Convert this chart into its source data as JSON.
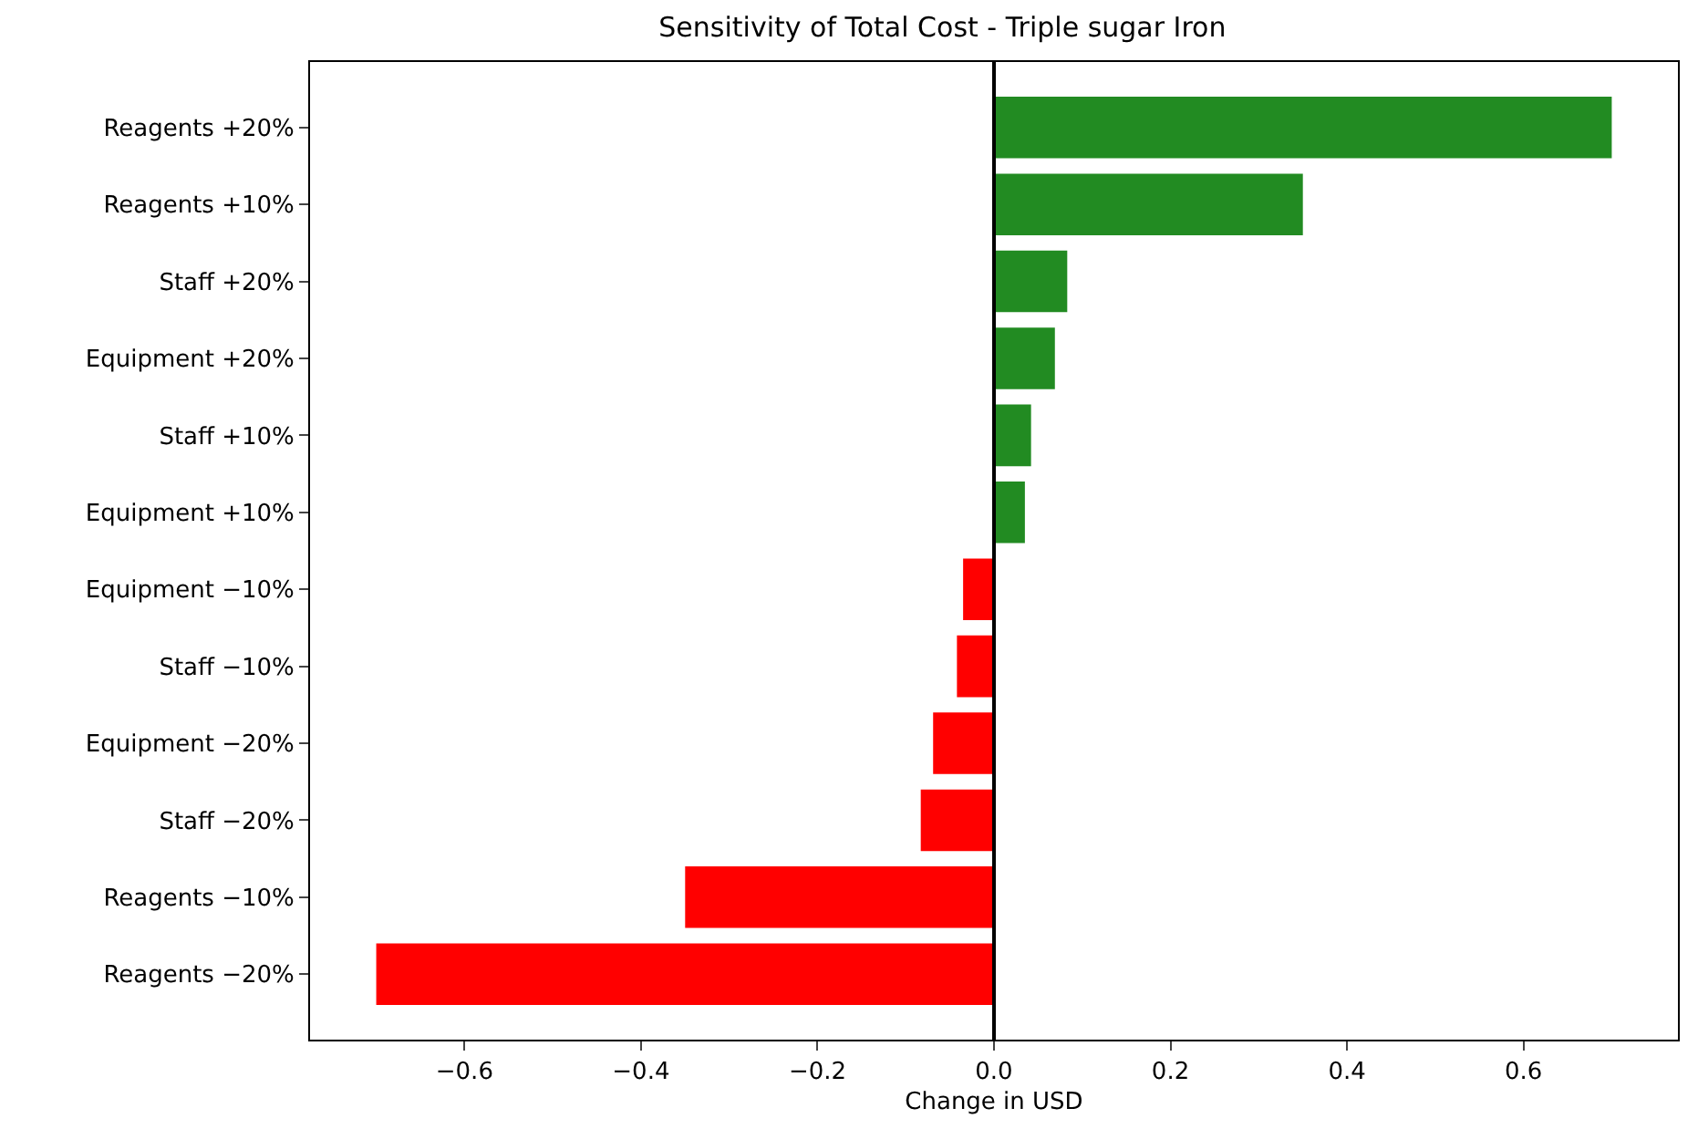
{
  "chart_data": {
    "type": "bar",
    "orientation": "horizontal",
    "title": "Sensitivity of Total Cost - Triple sugar Iron",
    "xlabel": "Change in USD",
    "categories": [
      "Reagents +20%",
      "Reagents +10%",
      "Staff +20%",
      "Equipment +20%",
      "Staff +10%",
      "Equipment +10%",
      "Equipment −10%",
      "Staff −10%",
      "Equipment −20%",
      "Staff −20%",
      "Reagents −10%",
      "Reagents −20%"
    ],
    "values": [
      0.7,
      0.35,
      0.083,
      0.069,
      0.042,
      0.035,
      -0.035,
      -0.042,
      -0.069,
      -0.083,
      -0.35,
      -0.7
    ],
    "colors": [
      "#228b22",
      "#228b22",
      "#228b22",
      "#228b22",
      "#228b22",
      "#228b22",
      "#ff0000",
      "#ff0000",
      "#ff0000",
      "#ff0000",
      "#ff0000",
      "#ff0000"
    ],
    "xlim": [
      -0.775,
      0.775
    ],
    "xticks": [
      {
        "value": -0.6,
        "label": "−0.6"
      },
      {
        "value": -0.4,
        "label": "−0.4"
      },
      {
        "value": -0.2,
        "label": "−0.2"
      },
      {
        "value": 0,
        "label": "0.0"
      },
      0.2,
      0.4,
      0.6
    ],
    "ref_lines": [
      {
        "axis": "x",
        "value": 0,
        "color": "#000000"
      }
    ]
  }
}
